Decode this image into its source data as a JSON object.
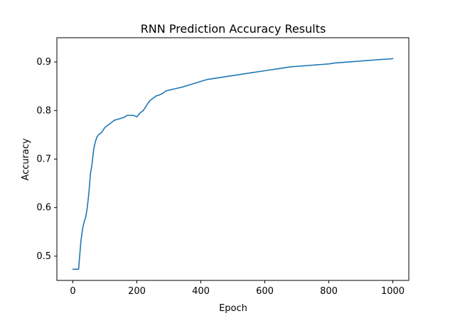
{
  "chart_data": {
    "type": "line",
    "title": "RNN Prediction Accuracy Results",
    "xlabel": "Epoch",
    "ylabel": "Accuracy",
    "xlim": [
      -50,
      1050
    ],
    "ylim": [
      0.45,
      0.95
    ],
    "grid": false,
    "xticks": [
      0,
      200,
      400,
      600,
      800,
      1000
    ],
    "xtick_labels": [
      "0",
      "200",
      "400",
      "600",
      "800",
      "1000"
    ],
    "yticks": [
      0.5,
      0.6,
      0.7,
      0.8,
      0.9
    ],
    "ytick_labels": [
      "0.5",
      "0.6",
      "0.7",
      "0.8",
      "0.9"
    ],
    "line_color": "#1f77b4",
    "series": [
      {
        "x": [
          0,
          18,
          20,
          25,
          30,
          35,
          40,
          45,
          50,
          55,
          60,
          65,
          70,
          75,
          80,
          90,
          100,
          110,
          120,
          130,
          140,
          150,
          160,
          170,
          180,
          190,
          200,
          210,
          220,
          230,
          240,
          250,
          260,
          270,
          280,
          290,
          300,
          320,
          340,
          360,
          380,
          400,
          420,
          440,
          460,
          480,
          500,
          520,
          540,
          560,
          580,
          600,
          620,
          640,
          660,
          680,
          700,
          720,
          740,
          760,
          780,
          800,
          820,
          840,
          860,
          880,
          900,
          920,
          940,
          960,
          980,
          990,
          1000
        ],
        "y": [
          0.473,
          0.473,
          0.49,
          0.53,
          0.555,
          0.57,
          0.58,
          0.6,
          0.63,
          0.67,
          0.69,
          0.72,
          0.735,
          0.745,
          0.75,
          0.755,
          0.765,
          0.77,
          0.775,
          0.78,
          0.782,
          0.784,
          0.786,
          0.79,
          0.79,
          0.79,
          0.787,
          0.795,
          0.8,
          0.81,
          0.82,
          0.825,
          0.83,
          0.832,
          0.835,
          0.84,
          0.842,
          0.845,
          0.848,
          0.852,
          0.856,
          0.86,
          0.864,
          0.866,
          0.868,
          0.87,
          0.872,
          0.874,
          0.876,
          0.878,
          0.88,
          0.882,
          0.884,
          0.886,
          0.888,
          0.89,
          0.891,
          0.892,
          0.893,
          0.894,
          0.895,
          0.896,
          0.898,
          0.899,
          0.9,
          0.901,
          0.902,
          0.903,
          0.904,
          0.905,
          0.906,
          0.906,
          0.907
        ]
      }
    ]
  }
}
